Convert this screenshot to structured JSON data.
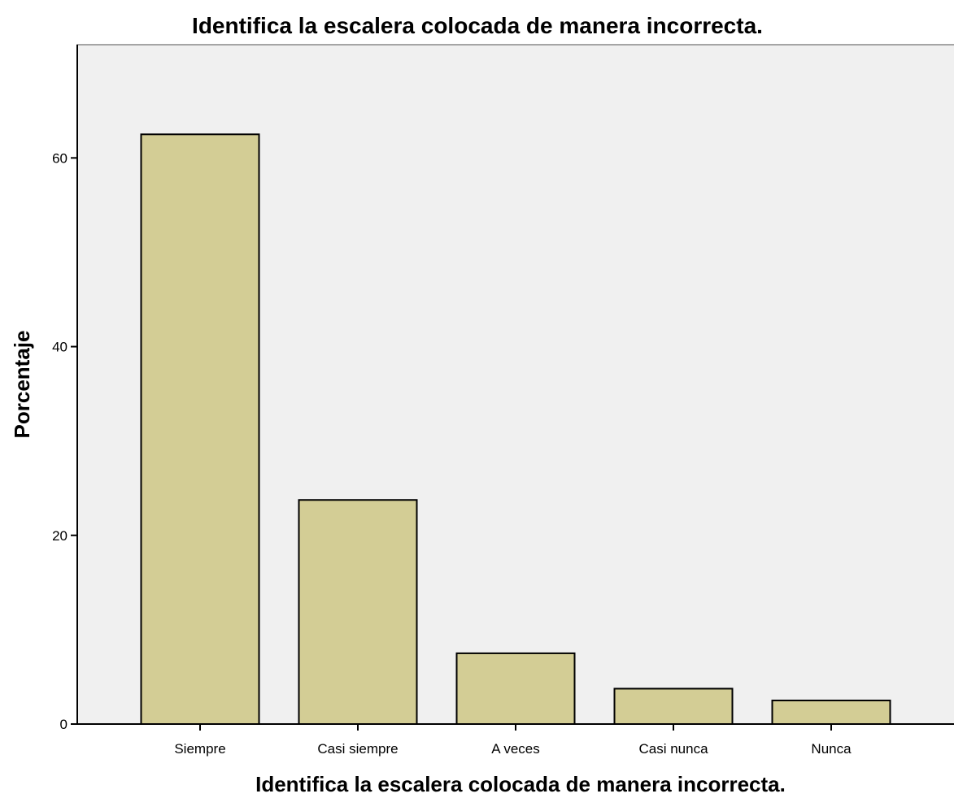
{
  "chart_data": {
    "type": "bar",
    "title": "Identifica la escalera colocada de manera incorrecta.",
    "xlabel": "Identifica la escalera colocada de manera incorrecta.",
    "ylabel": "Porcentaje",
    "categories": [
      "Siempre",
      "Casi siempre",
      "A veces",
      "Casi nunca",
      "Nunca"
    ],
    "values": [
      62.5,
      23.75,
      7.5,
      3.75,
      2.5
    ],
    "ylim": [
      0,
      72
    ],
    "yticks": [
      0,
      20,
      40,
      60
    ],
    "grid": false,
    "legend": "none",
    "colors": {
      "bar_fill": "#d3cd95",
      "plot_background": "#f0f0f0",
      "outline": "#000000"
    }
  }
}
